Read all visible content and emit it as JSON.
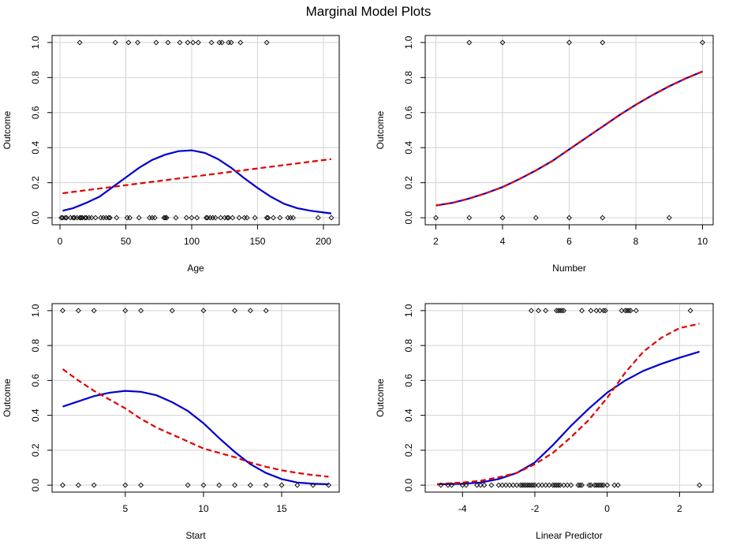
{
  "title": "Marginal Model Plots",
  "colors": {
    "model": "#0000cd",
    "data": "#e00000",
    "grid": "#d3d3d3"
  },
  "chart_data": [
    {
      "type": "scatter",
      "xlabel": "Age",
      "ylabel": "Outcome",
      "xlim": [
        -6,
        212
      ],
      "ylim": [
        -0.04,
        1.04
      ],
      "xticks": [
        0,
        50,
        100,
        150,
        200
      ],
      "yticks": [
        0.0,
        0.2,
        0.4,
        0.6,
        0.8,
        1.0
      ],
      "grid": true,
      "points_y1": [
        15,
        42,
        52,
        59,
        73,
        82,
        91,
        97,
        101,
        105,
        115,
        121,
        123,
        128,
        130,
        137,
        157
      ],
      "points_y0": [
        1,
        2,
        4,
        5,
        8,
        10,
        11,
        13,
        15,
        16,
        17,
        19,
        20,
        22,
        24,
        27,
        31,
        33,
        35,
        37,
        38,
        43,
        51,
        53,
        60,
        68,
        70,
        72,
        79,
        80,
        81,
        88,
        96,
        100,
        104,
        111,
        112,
        114,
        116,
        118,
        122,
        125,
        127,
        128,
        131,
        136,
        140,
        142,
        148,
        157,
        158,
        162,
        167,
        173,
        175,
        177,
        196,
        206
      ],
      "series": [
        {
          "x": [
            2,
            10,
            20,
            30,
            40,
            50,
            60,
            70,
            80,
            90,
            100,
            110,
            120,
            130,
            140,
            150,
            160,
            170,
            180,
            190,
            200,
            206
          ],
          "values": [
            0.04,
            0.055,
            0.085,
            0.12,
            0.175,
            0.23,
            0.285,
            0.33,
            0.36,
            0.38,
            0.385,
            0.37,
            0.335,
            0.285,
            0.225,
            0.17,
            0.12,
            0.08,
            0.055,
            0.04,
            0.03,
            0.025
          ],
          "color": "#0000cd",
          "dash": "solid"
        },
        {
          "x": [
            2,
            206
          ],
          "values": [
            0.14,
            0.335
          ],
          "color": "#e00000",
          "dash": "dashed"
        }
      ]
    },
    {
      "type": "scatter",
      "xlabel": "Number",
      "ylabel": "Outcome",
      "xlim": [
        1.68,
        10.32
      ],
      "ylim": [
        -0.04,
        1.04
      ],
      "xticks": [
        2,
        4,
        6,
        8,
        10
      ],
      "yticks": [
        0.0,
        0.2,
        0.4,
        0.6,
        0.8,
        1.0
      ],
      "grid": true,
      "points_y1": [
        3,
        4,
        6,
        7,
        10
      ],
      "points_y0": [
        2,
        3,
        4,
        5,
        6,
        7,
        9
      ],
      "series": [
        {
          "x": [
            2,
            2.5,
            3,
            3.5,
            4,
            4.5,
            5,
            5.5,
            6,
            6.5,
            7,
            7.5,
            8,
            8.5,
            9,
            9.5,
            10
          ],
          "values": [
            0.07,
            0.085,
            0.11,
            0.14,
            0.175,
            0.22,
            0.27,
            0.325,
            0.39,
            0.455,
            0.52,
            0.585,
            0.645,
            0.7,
            0.75,
            0.795,
            0.835
          ],
          "color": "#0000cd",
          "dash": "solid"
        },
        {
          "x": [
            2,
            2.5,
            3,
            3.5,
            4,
            4.5,
            5,
            5.5,
            6,
            6.5,
            7,
            7.5,
            8,
            8.5,
            9,
            9.5,
            10
          ],
          "values": [
            0.07,
            0.085,
            0.11,
            0.14,
            0.175,
            0.22,
            0.27,
            0.325,
            0.39,
            0.455,
            0.52,
            0.585,
            0.645,
            0.7,
            0.75,
            0.795,
            0.835
          ],
          "color": "#e00000",
          "dash": "dashed"
        }
      ]
    },
    {
      "type": "scatter",
      "xlabel": "Start",
      "ylabel": "Outcome",
      "xlim": [
        0.32,
        18.68
      ],
      "ylim": [
        -0.04,
        1.04
      ],
      "xticks": [
        5,
        10,
        15
      ],
      "yticks": [
        0.0,
        0.2,
        0.4,
        0.6,
        0.8,
        1.0
      ],
      "grid": true,
      "points_y1": [
        1,
        2,
        3,
        5,
        6,
        8,
        10,
        12,
        13,
        14
      ],
      "points_y0": [
        1,
        2,
        3,
        5,
        6,
        9,
        10,
        11,
        12,
        13,
        14,
        15,
        16,
        17,
        18
      ],
      "series": [
        {
          "x": [
            1,
            2,
            3,
            4,
            5,
            6,
            7,
            8,
            9,
            10,
            11,
            12,
            13,
            14,
            15,
            16,
            17,
            18
          ],
          "values": [
            0.45,
            0.48,
            0.51,
            0.53,
            0.54,
            0.535,
            0.515,
            0.475,
            0.425,
            0.355,
            0.27,
            0.19,
            0.12,
            0.07,
            0.035,
            0.015,
            0.008,
            0.005
          ],
          "color": "#0000cd",
          "dash": "solid"
        },
        {
          "x": [
            1,
            2,
            3,
            4,
            5,
            6,
            7,
            8,
            9,
            10,
            11,
            12,
            13,
            14,
            15,
            16,
            17,
            18
          ],
          "values": [
            0.665,
            0.6,
            0.54,
            0.49,
            0.44,
            0.38,
            0.33,
            0.29,
            0.25,
            0.21,
            0.185,
            0.16,
            0.13,
            0.105,
            0.085,
            0.07,
            0.058,
            0.048
          ],
          "color": "#e00000",
          "dash": "dashed"
        }
      ]
    },
    {
      "type": "scatter",
      "xlabel": "Linear Predictor",
      "ylabel": "Outcome",
      "xlim": [
        -5.03,
        2.93
      ],
      "ylim": [
        -0.04,
        1.04
      ],
      "xticks": [
        -4,
        -2,
        0,
        2
      ],
      "yticks": [
        0.0,
        0.2,
        0.4,
        0.6,
        0.8,
        1.0
      ],
      "grid": true,
      "points_y1": [
        -2.1,
        -1.9,
        -1.7,
        -1.4,
        -1.35,
        -1.3,
        -1.25,
        -1.2,
        -0.7,
        -0.45,
        -0.3,
        -0.2,
        -0.1,
        -0.05,
        0.4,
        0.5,
        0.55,
        0.6,
        0.65,
        0.8,
        2.3
      ],
      "points_y0": [
        -4.6,
        -4.4,
        -4.3,
        -4.0,
        -3.9,
        -3.6,
        -3.5,
        -3.4,
        -3.2,
        -3.0,
        -2.9,
        -2.8,
        -2.7,
        -2.6,
        -2.5,
        -2.4,
        -2.35,
        -2.3,
        -2.25,
        -2.2,
        -2.15,
        -2.1,
        -2.05,
        -2.0,
        -1.9,
        -1.8,
        -1.7,
        -1.6,
        -1.5,
        -1.45,
        -1.4,
        -1.35,
        -1.3,
        -1.2,
        -1.1,
        -1.0,
        -0.8,
        -0.75,
        -0.7,
        -0.5,
        -0.45,
        -0.35,
        -0.3,
        -0.25,
        -0.2,
        -0.15,
        -0.1,
        0.0,
        0.2,
        0.3,
        2.55
      ],
      "series": [
        {
          "x": [
            -4.7,
            -4.0,
            -3.5,
            -3.0,
            -2.5,
            -2.0,
            -1.5,
            -1.0,
            -0.5,
            0.0,
            0.5,
            1.0,
            1.5,
            2.0,
            2.55
          ],
          "values": [
            0.005,
            0.008,
            0.015,
            0.035,
            0.07,
            0.13,
            0.23,
            0.34,
            0.44,
            0.53,
            0.6,
            0.655,
            0.695,
            0.73,
            0.765
          ],
          "color": "#0000cd",
          "dash": "solid"
        },
        {
          "x": [
            -4.7,
            -4.0,
            -3.5,
            -3.0,
            -2.5,
            -2.0,
            -1.5,
            -1.0,
            -0.5,
            0.0,
            0.5,
            1.0,
            1.5,
            2.0,
            2.55
          ],
          "values": [
            0.005,
            0.015,
            0.025,
            0.045,
            0.07,
            0.12,
            0.185,
            0.275,
            0.375,
            0.5,
            0.645,
            0.765,
            0.845,
            0.9,
            0.925
          ],
          "color": "#e00000",
          "dash": "dashed"
        }
      ]
    }
  ]
}
